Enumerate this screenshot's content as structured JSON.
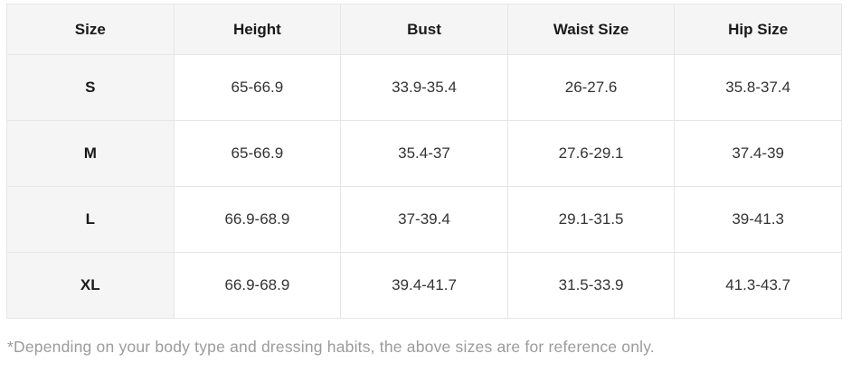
{
  "chart_data": {
    "type": "table",
    "title": "",
    "columns": [
      "Size",
      "Height",
      "Bust",
      "Waist Size",
      "Hip Size"
    ],
    "rows": [
      {
        "size": "S",
        "height": "65-66.9",
        "bust": "33.9-35.4",
        "waist": "26-27.6",
        "hip": "35.8-37.4"
      },
      {
        "size": "M",
        "height": "65-66.9",
        "bust": "35.4-37",
        "waist": "27.6-29.1",
        "hip": "37.4-39"
      },
      {
        "size": "L",
        "height": "66.9-68.9",
        "bust": "37-39.4",
        "waist": "29.1-31.5",
        "hip": "39-41.3"
      },
      {
        "size": "XL",
        "height": "66.9-68.9",
        "bust": "39.4-41.7",
        "waist": "31.5-33.9",
        "hip": "41.3-43.7"
      }
    ]
  },
  "footnote": "*Depending on your body type and dressing habits, the above sizes are for reference only.",
  "colors": {
    "header_bg": "#f5f5f5",
    "border": "#e6e6e6",
    "header_text": "#1a1a1a",
    "cell_text": "#333333",
    "footnote_text": "#9b9b9b"
  }
}
